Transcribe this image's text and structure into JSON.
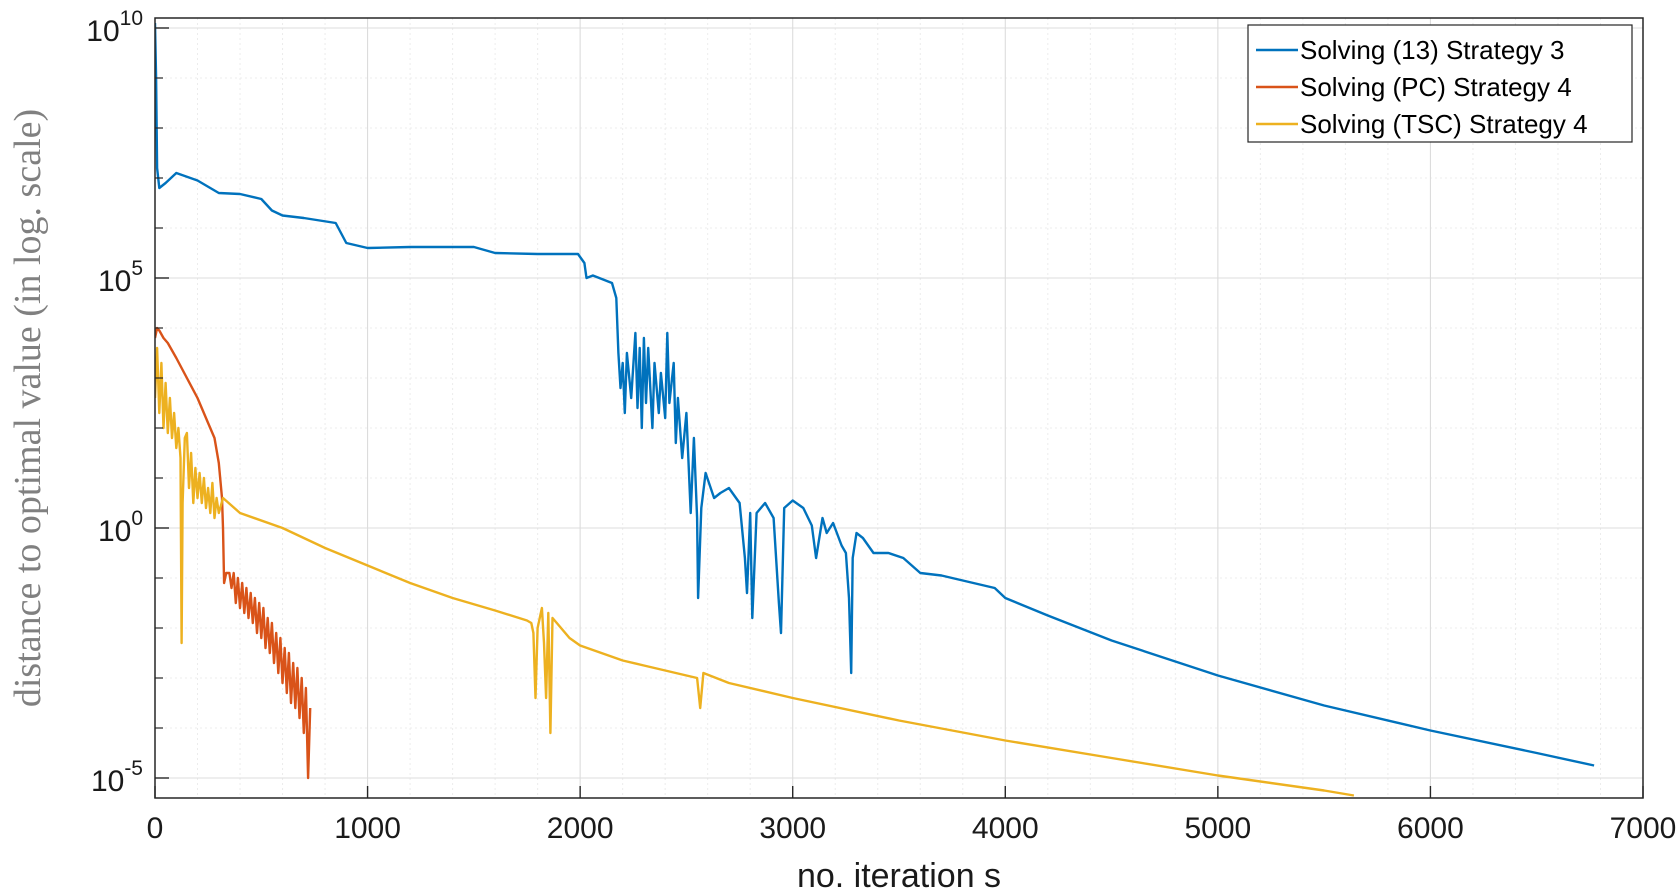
{
  "chart_data": {
    "type": "line",
    "title": "",
    "xlabel": "no. iteration s",
    "ylabel": "distance to optimal value (in log. scale)",
    "xlim": [
      0,
      7000
    ],
    "ylim_log10": [
      -5.4,
      10.2
    ],
    "yscale": "log",
    "grid": true,
    "minor_grid": true,
    "legend_position": "top-right",
    "x_ticks": [
      "0",
      "1000",
      "2000",
      "3000",
      "4000",
      "5000",
      "6000",
      "7000"
    ],
    "y_ticks": [
      {
        "base": "10",
        "exp": "10"
      },
      {
        "base": "10",
        "exp": "5"
      },
      {
        "base": "10",
        "exp": "0"
      },
      {
        "base": "10",
        "exp": "-5"
      }
    ],
    "series": [
      {
        "name": "Solving (13) Strategy 3",
        "color": "#0072BD",
        "points_log10": [
          [
            0,
            10.1
          ],
          [
            5,
            9.0
          ],
          [
            10,
            7.2
          ],
          [
            20,
            6.8
          ],
          [
            50,
            6.9
          ],
          [
            100,
            7.1
          ],
          [
            200,
            6.95
          ],
          [
            300,
            6.7
          ],
          [
            400,
            6.68
          ],
          [
            500,
            6.58
          ],
          [
            550,
            6.35
          ],
          [
            600,
            6.25
          ],
          [
            700,
            6.2
          ],
          [
            850,
            6.1
          ],
          [
            900,
            5.7
          ],
          [
            1000,
            5.6
          ],
          [
            1200,
            5.62
          ],
          [
            1500,
            5.62
          ],
          [
            1600,
            5.5
          ],
          [
            1800,
            5.48
          ],
          [
            1990,
            5.48
          ],
          [
            2020,
            5.3
          ],
          [
            2030,
            5.0
          ],
          [
            2060,
            5.05
          ],
          [
            2150,
            4.9
          ],
          [
            2170,
            4.6
          ],
          [
            2180,
            3.5
          ],
          [
            2190,
            2.8
          ],
          [
            2200,
            3.3
          ],
          [
            2210,
            2.3
          ],
          [
            2220,
            3.5
          ],
          [
            2240,
            2.6
          ],
          [
            2260,
            3.9
          ],
          [
            2270,
            2.4
          ],
          [
            2280,
            3.6
          ],
          [
            2290,
            2.0
          ],
          [
            2300,
            3.8
          ],
          [
            2310,
            2.5
          ],
          [
            2320,
            3.6
          ],
          [
            2340,
            2.0
          ],
          [
            2350,
            3.3
          ],
          [
            2370,
            2.3
          ],
          [
            2380,
            3.1
          ],
          [
            2400,
            2.2
          ],
          [
            2410,
            3.9
          ],
          [
            2420,
            2.5
          ],
          [
            2440,
            3.3
          ],
          [
            2450,
            1.7
          ],
          [
            2460,
            2.6
          ],
          [
            2480,
            1.4
          ],
          [
            2500,
            2.3
          ],
          [
            2520,
            0.3
          ],
          [
            2535,
            1.8
          ],
          [
            2550,
            0.2
          ],
          [
            2555,
            -1.4
          ],
          [
            2570,
            0.4
          ],
          [
            2590,
            1.1
          ],
          [
            2630,
            0.6
          ],
          [
            2660,
            0.7
          ],
          [
            2700,
            0.8
          ],
          [
            2750,
            0.5
          ],
          [
            2775,
            -0.6
          ],
          [
            2785,
            -1.3
          ],
          [
            2800,
            0.3
          ],
          [
            2810,
            -1.8
          ],
          [
            2830,
            0.3
          ],
          [
            2870,
            0.5
          ],
          [
            2910,
            0.2
          ],
          [
            2935,
            -1.5
          ],
          [
            2945,
            -2.1
          ],
          [
            2960,
            0.4
          ],
          [
            3000,
            0.55
          ],
          [
            3050,
            0.4
          ],
          [
            3090,
            0.05
          ],
          [
            3110,
            -0.6
          ],
          [
            3140,
            0.2
          ],
          [
            3160,
            -0.1
          ],
          [
            3190,
            0.1
          ],
          [
            3230,
            -0.35
          ],
          [
            3250,
            -0.5
          ],
          [
            3265,
            -1.4
          ],
          [
            3275,
            -2.9
          ],
          [
            3282,
            -0.6
          ],
          [
            3300,
            -0.1
          ],
          [
            3330,
            -0.2
          ],
          [
            3380,
            -0.5
          ],
          [
            3450,
            -0.5
          ],
          [
            3520,
            -0.6
          ],
          [
            3600,
            -0.9
          ],
          [
            3700,
            -0.95
          ],
          [
            3750,
            -1.0
          ],
          [
            3850,
            -1.1
          ],
          [
            3950,
            -1.2
          ],
          [
            4000,
            -1.4
          ],
          [
            4200,
            -1.75
          ],
          [
            4500,
            -2.25
          ],
          [
            5000,
            -2.95
          ],
          [
            5500,
            -3.55
          ],
          [
            6000,
            -4.05
          ],
          [
            6500,
            -4.5
          ],
          [
            6770,
            -4.75
          ]
        ]
      },
      {
        "name": "Solving (PC) Strategy 4",
        "color": "#D95319",
        "points_log10": [
          [
            0,
            3.8
          ],
          [
            10,
            4.0
          ],
          [
            20,
            3.95
          ],
          [
            40,
            3.8
          ],
          [
            60,
            3.7
          ],
          [
            100,
            3.4
          ],
          [
            150,
            3.0
          ],
          [
            200,
            2.6
          ],
          [
            250,
            2.1
          ],
          [
            280,
            1.8
          ],
          [
            300,
            1.3
          ],
          [
            315,
            0.6
          ],
          [
            320,
            0.0
          ],
          [
            325,
            -1.1
          ],
          [
            335,
            -0.9
          ],
          [
            350,
            -0.9
          ],
          [
            360,
            -1.2
          ],
          [
            370,
            -0.9
          ],
          [
            380,
            -1.5
          ],
          [
            390,
            -1.0
          ],
          [
            400,
            -1.6
          ],
          [
            410,
            -1.1
          ],
          [
            420,
            -1.7
          ],
          [
            430,
            -1.2
          ],
          [
            440,
            -1.8
          ],
          [
            450,
            -1.3
          ],
          [
            460,
            -1.9
          ],
          [
            470,
            -1.4
          ],
          [
            480,
            -2.1
          ],
          [
            490,
            -1.5
          ],
          [
            500,
            -2.2
          ],
          [
            510,
            -1.6
          ],
          [
            520,
            -2.4
          ],
          [
            530,
            -1.8
          ],
          [
            540,
            -2.5
          ],
          [
            550,
            -1.9
          ],
          [
            560,
            -2.7
          ],
          [
            570,
            -2.1
          ],
          [
            580,
            -2.9
          ],
          [
            590,
            -2.2
          ],
          [
            600,
            -3.1
          ],
          [
            610,
            -2.4
          ],
          [
            620,
            -3.3
          ],
          [
            630,
            -2.5
          ],
          [
            640,
            -3.5
          ],
          [
            650,
            -2.7
          ],
          [
            660,
            -3.6
          ],
          [
            670,
            -2.8
          ],
          [
            680,
            -3.8
          ],
          [
            690,
            -3.0
          ],
          [
            700,
            -4.1
          ],
          [
            710,
            -3.2
          ],
          [
            720,
            -5.0
          ],
          [
            730,
            -3.6
          ]
        ]
      },
      {
        "name": "Solving (TSC) Strategy 4",
        "color": "#EDB120",
        "points_log10": [
          [
            0,
            2.6
          ],
          [
            10,
            3.6
          ],
          [
            20,
            2.3
          ],
          [
            30,
            3.3
          ],
          [
            40,
            2.0
          ],
          [
            50,
            2.9
          ],
          [
            60,
            1.9
          ],
          [
            70,
            2.6
          ],
          [
            80,
            1.8
          ],
          [
            90,
            2.3
          ],
          [
            100,
            1.6
          ],
          [
            110,
            2.0
          ],
          [
            120,
            1.4
          ],
          [
            125,
            -2.3
          ],
          [
            130,
            0.5
          ],
          [
            140,
            1.8
          ],
          [
            150,
            1.9
          ],
          [
            160,
            0.8
          ],
          [
            170,
            1.5
          ],
          [
            180,
            0.5
          ],
          [
            190,
            1.2
          ],
          [
            200,
            0.6
          ],
          [
            210,
            1.1
          ],
          [
            220,
            0.5
          ],
          [
            230,
            1.0
          ],
          [
            240,
            0.4
          ],
          [
            250,
            0.8
          ],
          [
            260,
            0.3
          ],
          [
            270,
            0.9
          ],
          [
            280,
            0.2
          ],
          [
            290,
            0.6
          ],
          [
            300,
            0.3
          ],
          [
            320,
            0.6
          ],
          [
            400,
            0.3
          ],
          [
            600,
            0.0
          ],
          [
            800,
            -0.4
          ],
          [
            1000,
            -0.75
          ],
          [
            1200,
            -1.1
          ],
          [
            1400,
            -1.4
          ],
          [
            1600,
            -1.65
          ],
          [
            1750,
            -1.85
          ],
          [
            1770,
            -1.9
          ],
          [
            1780,
            -2.1
          ],
          [
            1790,
            -3.4
          ],
          [
            1800,
            -2.0
          ],
          [
            1820,
            -1.6
          ],
          [
            1830,
            -2.3
          ],
          [
            1840,
            -3.4
          ],
          [
            1850,
            -1.7
          ],
          [
            1860,
            -4.1
          ],
          [
            1870,
            -1.8
          ],
          [
            1890,
            -1.9
          ],
          [
            1950,
            -2.2
          ],
          [
            2000,
            -2.35
          ],
          [
            2100,
            -2.5
          ],
          [
            2200,
            -2.65
          ],
          [
            2300,
            -2.75
          ],
          [
            2400,
            -2.85
          ],
          [
            2550,
            -3.0
          ],
          [
            2565,
            -3.6
          ],
          [
            2580,
            -2.9
          ],
          [
            2700,
            -3.1
          ],
          [
            3000,
            -3.4
          ],
          [
            3500,
            -3.85
          ],
          [
            4000,
            -4.25
          ],
          [
            4500,
            -4.6
          ],
          [
            5000,
            -4.95
          ],
          [
            5500,
            -5.25
          ],
          [
            5640,
            -5.35
          ]
        ]
      }
    ]
  }
}
